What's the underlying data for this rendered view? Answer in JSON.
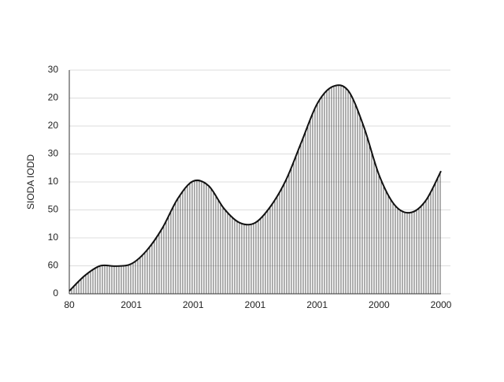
{
  "chart_data": {
    "type": "area",
    "y_label": "SIODA IODD",
    "x": [
      0,
      0.25,
      0.5,
      0.75,
      1,
      1.25,
      1.5,
      1.75,
      2,
      2.25,
      2.5,
      2.75,
      3,
      3.25,
      3.5,
      3.75,
      4,
      4.25,
      4.5,
      4.75,
      5,
      5.25,
      5.5,
      5.75,
      6
    ],
    "values": [
      1,
      6.5,
      10,
      9.9,
      10.7,
      15.5,
      23.4,
      34,
      40.3,
      38.6,
      30.4,
      25.4,
      25.4,
      31.3,
      40.8,
      54.4,
      67.9,
      74.1,
      72.7,
      60,
      42.5,
      31.8,
      29,
      33.2,
      43.9
    ],
    "color": "#111111",
    "xlim": [
      0,
      6
    ],
    "xticks": [
      {
        "value": 0,
        "label": "80"
      },
      {
        "value": 1,
        "label": "2001"
      },
      {
        "value": 2,
        "label": "2001"
      },
      {
        "value": 3,
        "label": "2001"
      },
      {
        "value": 4,
        "label": "2001"
      },
      {
        "value": 5,
        "label": "2000"
      },
      {
        "value": 6,
        "label": "2000"
      }
    ],
    "ylim": [
      0,
      80
    ],
    "yticks": [
      0,
      {
        "value": 10,
        "label": "60"
      },
      {
        "value": 20,
        "label": "10"
      },
      {
        "value": 30,
        "label": "50"
      },
      {
        "value": 40,
        "label": "10"
      },
      {
        "value": 50,
        "label": "30"
      },
      {
        "value": 60,
        "label": "20"
      },
      {
        "value": 70,
        "label": "20"
      },
      {
        "value": 80,
        "label": "30"
      }
    ],
    "grid": true
  }
}
